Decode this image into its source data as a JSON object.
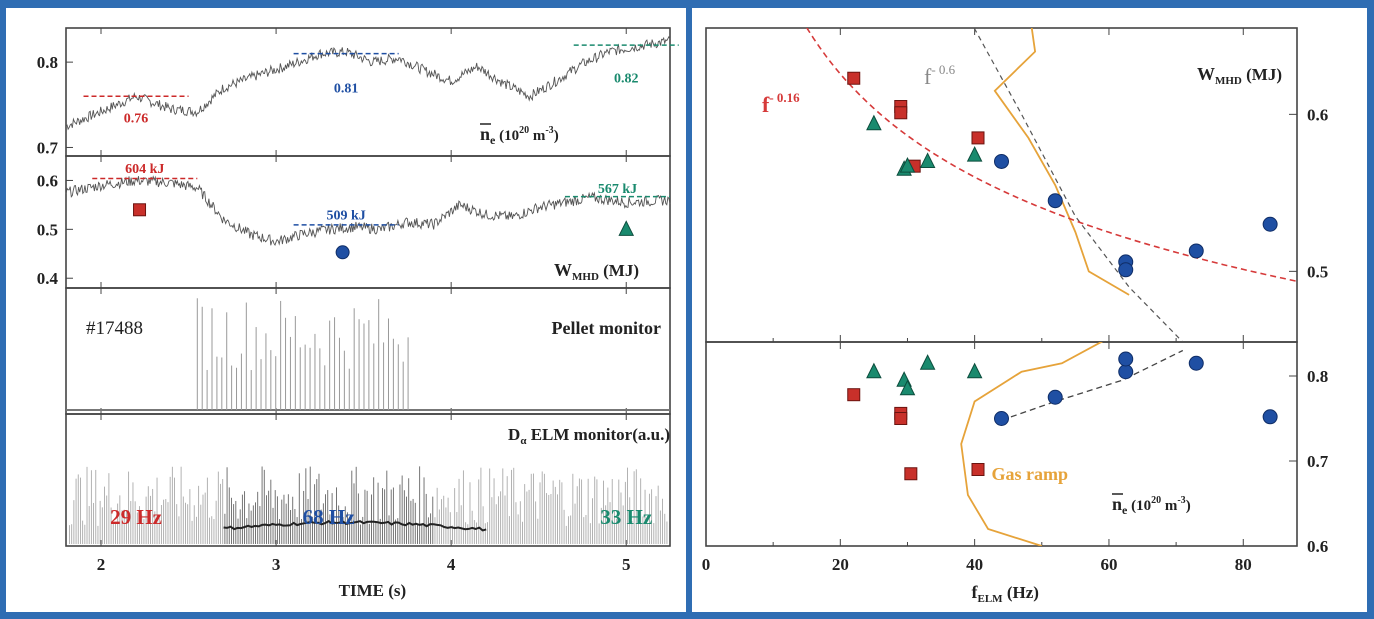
{
  "chart_data": [
    {
      "type": "line",
      "panel": "left-density",
      "ylabel": "n̄e (10²⁰ m⁻³)",
      "ylabel_main": "n",
      "ylabel_sub": "e",
      "ylabel_unit": "(10",
      "ylabel_exp": "20",
      "ylabel_unit2": " m",
      "ylabel_exp2": "-3",
      "ylabel_close": ")",
      "xlim": [
        1.8,
        5.25
      ],
      "ylim": [
        0.69,
        0.84
      ],
      "yticks": [
        "0.7",
        "0.8"
      ],
      "yticks_val": [
        0.7,
        0.8
      ],
      "x": [
        1.8,
        2.0,
        2.2,
        2.4,
        2.55,
        2.7,
        2.9,
        3.1,
        3.25,
        3.4,
        3.55,
        3.7,
        3.85,
        4.0,
        4.15,
        4.3,
        4.45,
        4.6,
        4.75,
        4.9,
        5.05,
        5.25
      ],
      "values": [
        0.725,
        0.742,
        0.76,
        0.745,
        0.742,
        0.77,
        0.785,
        0.798,
        0.81,
        0.812,
        0.8,
        0.805,
        0.79,
        0.778,
        0.795,
        0.775,
        0.76,
        0.778,
        0.798,
        0.812,
        0.818,
        0.825
      ],
      "annotations": [
        {
          "text": "0.76",
          "x": 2.2,
          "y": 0.735,
          "color": "#cc2a2a"
        },
        {
          "text": "0.81",
          "x": 3.4,
          "y": 0.77,
          "color": "#1f4fa3"
        },
        {
          "text": "0.82",
          "x": 5.0,
          "y": 0.782,
          "color": "#1a8a6e"
        }
      ],
      "markers": []
    },
    {
      "type": "line",
      "panel": "left-wmhd",
      "ylabel_main": "W",
      "ylabel_sub": "MHD",
      "ylabel_unit": "(MJ)",
      "xlim": [
        1.8,
        5.25
      ],
      "ylim": [
        0.38,
        0.65
      ],
      "yticks": [
        "0.4",
        "0.5",
        "0.6"
      ],
      "yticks_val": [
        0.4,
        0.5,
        0.6
      ],
      "x": [
        1.8,
        2.0,
        2.2,
        2.4,
        2.55,
        2.7,
        2.85,
        3.0,
        3.15,
        3.3,
        3.45,
        3.6,
        3.75,
        3.9,
        4.05,
        4.2,
        4.35,
        4.5,
        4.65,
        4.8,
        5.0,
        5.25
      ],
      "values": [
        0.575,
        0.59,
        0.6,
        0.595,
        0.585,
        0.52,
        0.49,
        0.475,
        0.49,
        0.5,
        0.505,
        0.5,
        0.515,
        0.51,
        0.55,
        0.53,
        0.525,
        0.545,
        0.555,
        0.565,
        0.555,
        0.56
      ],
      "annotations": [
        {
          "text": "604 kJ",
          "x": 2.25,
          "y": 0.625,
          "color": "#cc2a2a"
        },
        {
          "text": "509 kJ",
          "x": 3.4,
          "y": 0.53,
          "color": "#1f4fa3"
        },
        {
          "text": "567 kJ",
          "x": 4.95,
          "y": 0.585,
          "color": "#1a8a6e"
        }
      ],
      "markers": [
        {
          "shape": "square",
          "x": 2.22,
          "y": 0.54,
          "color": "#c8302a"
        },
        {
          "shape": "circle",
          "x": 3.38,
          "y": 0.453,
          "color": "#1f4fa3"
        },
        {
          "shape": "triangle",
          "x": 5.0,
          "y": 0.5,
          "color": "#1a8a6e"
        }
      ]
    },
    {
      "type": "bar",
      "panel": "left-pellet",
      "title": "Pellet monitor",
      "shot": "#17488",
      "xlim": [
        1.8,
        5.25
      ],
      "ylim": [
        0,
        1
      ]
    },
    {
      "type": "bar",
      "panel": "left-elm",
      "title_main": "D",
      "title_sub": "α",
      "title_rest": " ELM monitor(a.u.)",
      "xlim": [
        1.8,
        5.25
      ],
      "ylim": [
        0,
        1
      ],
      "xlabel": "TIME  (s)",
      "xticks": [
        "2",
        "3",
        "4",
        "5"
      ],
      "xticks_val": [
        2,
        3,
        4,
        5
      ],
      "annotations": [
        {
          "text": "29 Hz",
          "x": 2.2,
          "color": "#cc2a2a"
        },
        {
          "text": "68 Hz",
          "x": 3.3,
          "color": "#1f4fa3"
        },
        {
          "text": "33 Hz",
          "x": 5.0,
          "color": "#1a8a6e"
        }
      ]
    },
    {
      "type": "scatter",
      "panel": "right-wmhd",
      "ylabel_main": "W",
      "ylabel_sub": "MHD",
      "ylabel_unit": "(MJ)",
      "xlim": [
        0,
        88
      ],
      "ylim": [
        0.455,
        0.655
      ],
      "yticks": [
        "0.5",
        "0.6"
      ],
      "yticks_val": [
        0.5,
        0.6
      ],
      "fit_red_label": "f",
      "fit_red_exp": "- 0.16",
      "fit_gray_label": "f",
      "fit_gray_exp": "- 0.6",
      "squares": [
        [
          22,
          0.623
        ],
        [
          29,
          0.605
        ],
        [
          29,
          0.601
        ],
        [
          40.5,
          0.585
        ],
        [
          31,
          0.567
        ]
      ],
      "triangles": [
        [
          25,
          0.594
        ],
        [
          29.5,
          0.565
        ],
        [
          30,
          0.567
        ],
        [
          33,
          0.57
        ],
        [
          40,
          0.574
        ]
      ],
      "circles": [
        [
          44,
          0.57
        ],
        [
          52,
          0.545
        ],
        [
          62.5,
          0.506
        ],
        [
          62.5,
          0.501
        ],
        [
          73,
          0.513
        ],
        [
          84,
          0.53
        ]
      ],
      "red_fit": [
        [
          17,
          0.64
        ],
        [
          25,
          0.607
        ],
        [
          35,
          0.578
        ],
        [
          45,
          0.557
        ],
        [
          55,
          0.538
        ],
        [
          65,
          0.522
        ],
        [
          75,
          0.51
        ],
        [
          88,
          0.495
        ]
      ],
      "gray_fit": [
        [
          38,
          0.67
        ],
        [
          47,
          0.6
        ],
        [
          55,
          0.535
        ],
        [
          63,
          0.49
        ],
        [
          71,
          0.455
        ]
      ],
      "orange_line": [
        [
          48,
          0.67
        ],
        [
          49,
          0.64
        ],
        [
          43,
          0.615
        ],
        [
          48,
          0.585
        ],
        [
          52,
          0.555
        ],
        [
          55,
          0.525
        ],
        [
          57,
          0.5
        ],
        [
          63,
          0.485
        ]
      ]
    },
    {
      "type": "scatter",
      "panel": "right-density",
      "ylabel_main": "n",
      "ylabel_sub": "e",
      "ylabel_unit": "(10",
      "ylabel_exp": "20",
      "ylabel_unit2": " m",
      "ylabel_exp2": "-3",
      "ylabel_close": ")",
      "xlim": [
        0,
        88
      ],
      "ylim": [
        0.6,
        0.84
      ],
      "yticks": [
        "0.6",
        "0.7",
        "0.8"
      ],
      "yticks_val": [
        0.6,
        0.7,
        0.8
      ],
      "xlabel_main": "f",
      "xlabel_sub": "ELM",
      "xlabel_unit": " (Hz)",
      "xticks": [
        "0",
        "20",
        "40",
        "60",
        "80"
      ],
      "xticks_val": [
        0,
        20,
        40,
        60,
        80
      ],
      "gas_ramp_label": "Gas ramp",
      "squares": [
        [
          22,
          0.778
        ],
        [
          29,
          0.756
        ],
        [
          29,
          0.75
        ],
        [
          30.5,
          0.685
        ],
        [
          40.5,
          0.69
        ]
      ],
      "triangles": [
        [
          25,
          0.805
        ],
        [
          29.5,
          0.795
        ],
        [
          30,
          0.785
        ],
        [
          33,
          0.815
        ],
        [
          40,
          0.805
        ]
      ],
      "circles": [
        [
          44,
          0.75
        ],
        [
          52,
          0.775
        ],
        [
          62.5,
          0.805
        ],
        [
          62.5,
          0.82
        ],
        [
          73,
          0.815
        ],
        [
          84,
          0.752
        ]
      ],
      "trend": [
        [
          44,
          0.748
        ],
        [
          52,
          0.77
        ],
        [
          62,
          0.795
        ],
        [
          71,
          0.83
        ]
      ],
      "orange_line": [
        [
          60,
          0.845
        ],
        [
          53,
          0.815
        ],
        [
          47,
          0.805
        ],
        [
          40,
          0.77
        ],
        [
          38,
          0.72
        ],
        [
          39,
          0.66
        ],
        [
          42,
          0.62
        ],
        [
          50,
          0.6
        ]
      ]
    }
  ]
}
